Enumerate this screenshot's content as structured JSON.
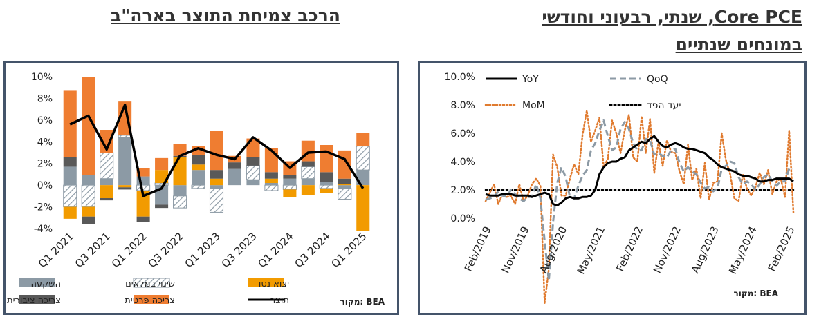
{
  "titles": {
    "left": "הרכב צמיחת התוצר בארה\"ב",
    "right_line1": "Core PCE, שנתי, רבעוני וחודשי",
    "right_line2": "במונחים שנתיים"
  },
  "colors": {
    "investment": "#8c9aa5",
    "inventory": "#ffffff",
    "net_exports": "#f29b00",
    "government": "#595959",
    "consumption": "#ef7d31",
    "gdp": "#000000",
    "yoy": "#000000",
    "qoq": "#8c9aa5",
    "mom": "#e07a2e",
    "target": "#000000",
    "panel_border": "#44546a"
  },
  "chart_data": [
    {
      "type": "bar",
      "stacked": true,
      "categories": [
        "Q1 2021",
        "Q2 2021",
        "Q3 2021",
        "Q4 2021",
        "Q1 2022",
        "Q2 2022",
        "Q3 2022",
        "Q4 2022",
        "Q1 2023",
        "Q2 2023",
        "Q3 2023",
        "Q4 2023",
        "Q1 2024",
        "Q2 2024",
        "Q3 2024",
        "Q4 2024",
        "Q1 2025"
      ],
      "tick_labels": [
        "Q1 2021",
        "Q3 2021",
        "Q1 2022",
        "Q3 2022",
        "Q1 2023",
        "Q3 2023",
        "Q1 2024",
        "Q3 2024",
        "Q1 2025"
      ],
      "y_tick_labels": [
        "10%",
        "8%",
        "6%",
        "4%",
        "2%",
        "0%",
        "-2%",
        "-4%"
      ],
      "ylim": [
        -4,
        10
      ],
      "series": [
        {
          "key": "investment",
          "name": "השקעה",
          "values": [
            1.7,
            0.9,
            0.6,
            4.4,
            0.8,
            -1.8,
            -1.0,
            1.4,
            -0.3,
            1.5,
            0.5,
            0.2,
            0.6,
            0.6,
            0.3,
            -0.3,
            1.4
          ]
        },
        {
          "key": "inventory",
          "name": "שינוי במלאים",
          "values": [
            -2.0,
            -2.0,
            2.4,
            0.2,
            -0.5,
            0.2,
            -1.1,
            -0.3,
            -2.2,
            0.0,
            1.3,
            -0.5,
            -0.4,
            1.1,
            -0.3,
            -1.0,
            2.2
          ]
        },
        {
          "key": "net_exports",
          "name": "יצוא נטו",
          "values": [
            -1.1,
            -0.9,
            -1.2,
            -0.2,
            -2.4,
            1.2,
            2.6,
            0.5,
            0.6,
            0.0,
            0.0,
            0.4,
            -0.7,
            -0.9,
            -0.4,
            0.1,
            -4.2
          ]
        },
        {
          "key": "government",
          "name": "צריכה ציבורית",
          "values": [
            0.9,
            -0.7,
            -0.2,
            -0.2,
            -0.5,
            -0.3,
            0.1,
            0.9,
            0.8,
            0.6,
            0.8,
            0.6,
            0.3,
            0.5,
            0.9,
            0.5,
            0.0
          ]
        },
        {
          "key": "consumption",
          "name": "צריכה פרטית",
          "values": [
            6.1,
            9.1,
            2.1,
            3.1,
            0.8,
            1.1,
            1.1,
            0.8,
            3.6,
            0.6,
            1.7,
            2.2,
            1.3,
            1.9,
            2.5,
            2.6,
            1.2
          ]
        }
      ],
      "line": {
        "key": "gdp",
        "name": "תוצר",
        "values": [
          5.6,
          6.4,
          3.3,
          7.4,
          -1.0,
          -0.3,
          2.7,
          3.4,
          2.8,
          2.4,
          4.4,
          3.2,
          1.6,
          3.0,
          3.1,
          2.4,
          -0.3
        ]
      },
      "source": "מקור: BEA"
    },
    {
      "type": "line",
      "x_tick_labels": [
        "Feb/2019",
        "Nov/2019",
        "Aug/2020",
        "May/2021",
        "Feb/2022",
        "Nov/2022",
        "Aug/2023",
        "May/2024",
        "Feb/2025"
      ],
      "y_tick_labels": [
        "10.0%",
        "8.0%",
        "6.0%",
        "4.0%",
        "2.0%",
        "0.0%"
      ],
      "ylim": [
        0,
        10
      ],
      "series": [
        {
          "key": "yoy",
          "name": "YoY",
          "style": "solid",
          "values": [
            1.7,
            1.6,
            1.6,
            1.6,
            1.7,
            1.7,
            1.7,
            1.6,
            1.6,
            1.6,
            1.6,
            1.5,
            1.6,
            1.7,
            1.8,
            1.7,
            1.0,
            0.9,
            1.1,
            1.4,
            1.5,
            1.4,
            1.4,
            1.5,
            1.5,
            1.6,
            2.0,
            3.1,
            3.6,
            3.9,
            4.0,
            4.0,
            4.2,
            4.3,
            4.8,
            5.0,
            5.2,
            5.4,
            5.3,
            5.6,
            5.8,
            5.4,
            5.1,
            5.0,
            5.2,
            5.3,
            5.2,
            5.0,
            4.9,
            4.9,
            4.8,
            4.7,
            4.6,
            4.3,
            4.1,
            3.8,
            3.6,
            3.5,
            3.4,
            3.3,
            3.1,
            3.0,
            3.0,
            2.9,
            2.8,
            2.6,
            2.6,
            2.7,
            2.7,
            2.8,
            2.8,
            2.8,
            2.8,
            2.6
          ]
        },
        {
          "key": "qoq",
          "name": "QoQ",
          "style": "dashed",
          "values": [
            1.3,
            1.4,
            1.5,
            1.9,
            1.6,
            1.5,
            2.0,
            1.7,
            1.4,
            1.2,
            1.5,
            1.5,
            2.4,
            1.4,
            -1.6,
            -4.4,
            -0.3,
            2.5,
            3.6,
            2.9,
            1.5,
            1.4,
            2.3,
            3.0,
            3.4,
            4.8,
            5.3,
            6.2,
            6.9,
            5.8,
            4.8,
            5.0,
            6.3,
            6.8,
            6.3,
            5.3,
            4.8,
            4.8,
            5.6,
            5.5,
            4.5,
            4.6,
            4.4,
            4.3,
            4.8,
            4.9,
            3.9,
            3.3,
            3.6,
            3.3,
            3.1,
            2.5,
            2.1,
            2.2,
            1.9,
            2.1,
            3.5,
            3.7,
            4.0,
            3.9,
            2.9,
            2.4,
            2.6,
            2.4,
            2.0,
            2.4,
            2.9,
            3.1,
            2.6,
            2.3,
            2.6,
            2.6,
            3.5,
            3.5
          ]
        },
        {
          "key": "mom",
          "name": "MoM",
          "style": "dotted",
          "values": [
            1.2,
            1.8,
            2.4,
            1.0,
            1.7,
            1.5,
            1.6,
            1.0,
            2.4,
            1.2,
            1.6,
            2.4,
            2.8,
            2.3,
            -6.0,
            -3.6,
            4.5,
            3.6,
            1.6,
            1.6,
            2.8,
            3.8,
            3.1,
            5.9,
            7.6,
            5.4,
            6.2,
            7.1,
            3.6,
            4.2,
            6.9,
            6.0,
            4.6,
            6.2,
            7.3,
            4.3,
            4.0,
            7.2,
            4.6,
            7.0,
            3.2,
            5.4,
            3.7,
            5.5,
            4.7,
            4.6,
            3.3,
            2.4,
            5.2,
            2.7,
            3.5,
            1.4,
            3.9,
            1.3,
            2.5,
            2.6,
            6.0,
            4.1,
            3.1,
            1.4,
            1.2,
            3.1,
            2.1,
            1.6,
            2.2,
            3.2,
            2.4,
            3.4,
            1.7,
            2.6,
            2.8,
            1.5,
            6.2,
            0.4
          ]
        },
        {
          "key": "target",
          "name": "יעד הפד",
          "style": "dotted-black",
          "values": [
            2,
            2
          ]
        }
      ],
      "source": "מקור: BEA"
    }
  ]
}
